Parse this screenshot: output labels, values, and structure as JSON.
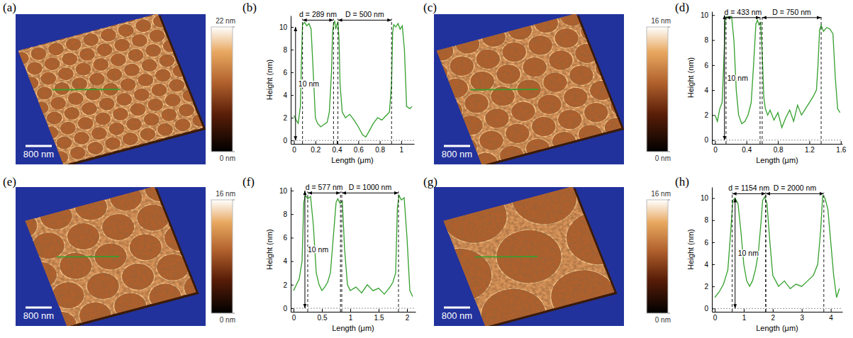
{
  "chart_data": [
    {
      "type": "image",
      "panel": "(a)",
      "scale_bar": {
        "value": 800,
        "label": "800 nm"
      },
      "colorbar": {
        "range": [
          0,
          22
        ],
        "ticks": [
          {
            "value": 0,
            "label": "0 nm"
          },
          {
            "value": 22,
            "label": "22 nm"
          }
        ]
      }
    },
    {
      "type": "line",
      "panel": "(b)",
      "xlabel": "Length (μm)",
      "ylabel": "Height (nm)",
      "color": "#33a02c",
      "x": [
        0,
        0.02,
        0.04,
        0.06,
        0.07,
        0.08,
        0.1,
        0.12,
        0.14,
        0.16,
        0.18,
        0.2,
        0.22,
        0.25,
        0.28,
        0.31,
        0.33,
        0.35,
        0.36,
        0.37,
        0.38,
        0.39,
        0.4,
        0.41,
        0.42,
        0.43,
        0.45,
        0.48,
        0.52,
        0.56,
        0.6,
        0.64,
        0.67,
        0.7,
        0.74,
        0.78,
        0.82,
        0.86,
        0.89,
        0.91,
        0.92,
        0.93,
        0.95,
        0.97,
        0.99,
        1.01,
        1.03,
        1.05,
        1.08,
        1.1
      ],
      "values": [
        2.2,
        1.8,
        1.5,
        3,
        7,
        10.2,
        10.4,
        10.1,
        10.3,
        9.8,
        6,
        2,
        1.5,
        1.2,
        1.4,
        1.6,
        2.5,
        6,
        9.5,
        10.3,
        10.5,
        9.8,
        10.2,
        10.4,
        9,
        5,
        2.5,
        2,
        2.3,
        1.8,
        1.2,
        0.5,
        0.3,
        0.8,
        1.5,
        2,
        1.8,
        2.2,
        2.5,
        5,
        9.5,
        10.2,
        10,
        10.3,
        9.8,
        10.1,
        8,
        3,
        2.8,
        3
      ],
      "xlim": [
        -0.03,
        1.12
      ],
      "ylim": [
        -0.3,
        11
      ],
      "xticks": [
        0,
        0.2,
        0.4,
        0.6,
        0.8,
        1
      ],
      "yticks": [
        0,
        2,
        4,
        6,
        8,
        10
      ],
      "annotations": [
        {
          "text": "d = 289 nm",
          "x": [
            0.08,
            0.369
          ],
          "y": 10.6
        },
        {
          "text": "D = 500 nm",
          "x": [
            0.41,
            0.91
          ],
          "y": 10.6
        },
        {
          "text": "10 nm",
          "x": 0.015,
          "y": [
            0,
            10
          ]
        }
      ]
    },
    {
      "type": "image",
      "panel": "(c)",
      "scale_bar": {
        "value": 800,
        "label": "800 nm"
      },
      "colorbar": {
        "range": [
          0,
          16
        ],
        "ticks": [
          {
            "value": 0,
            "label": "0 nm"
          },
          {
            "value": 16,
            "label": "16 nm"
          }
        ]
      }
    },
    {
      "type": "line",
      "panel": "(d)",
      "xlabel": "Length (μm)",
      "ylabel": "Height (nm)",
      "color": "#33a02c",
      "x": [
        0,
        0.03,
        0.06,
        0.09,
        0.11,
        0.13,
        0.15,
        0.18,
        0.21,
        0.24,
        0.27,
        0.3,
        0.34,
        0.38,
        0.42,
        0.46,
        0.49,
        0.52,
        0.54,
        0.56,
        0.58,
        0.6,
        0.62,
        0.64,
        0.67,
        0.7,
        0.75,
        0.8,
        0.85,
        0.9,
        0.95,
        1.0,
        1.05,
        1.1,
        1.15,
        1.2,
        1.25,
        1.29,
        1.31,
        1.33,
        1.35,
        1.38,
        1.42,
        1.46,
        1.5,
        1.53,
        1.56,
        1.59
      ],
      "values": [
        2,
        1.5,
        2.5,
        3,
        6,
        9.5,
        10,
        9.8,
        9.9,
        8,
        4,
        2,
        1.3,
        1.5,
        2,
        3,
        6,
        9.3,
        9.6,
        9.2,
        9.4,
        7,
        3.5,
        2.5,
        2,
        2.4,
        1.6,
        2.2,
        1,
        1.8,
        2.4,
        1.5,
        2.8,
        2,
        2.5,
        3,
        3.5,
        4,
        6,
        8.8,
        9.2,
        8.7,
        9,
        8.9,
        8.5,
        5,
        2.5,
        2.2
      ],
      "xlim": [
        -0.04,
        1.62
      ],
      "ylim": [
        -0.3,
        10.3
      ],
      "xticks": [
        0,
        0.4,
        0.8,
        1.2,
        1.6
      ],
      "yticks": [
        0,
        2,
        4,
        6,
        8,
        10
      ],
      "annotations": [
        {
          "text": "d = 433 nm",
          "x": [
            0.14,
            0.573
          ],
          "y": 9.8
        },
        {
          "text": "D = 750 nm",
          "x": [
            0.6,
            1.35
          ],
          "y": 9.8
        },
        {
          "text": "10 nm",
          "x": 0.12,
          "y": [
            0,
            10
          ]
        }
      ]
    },
    {
      "type": "image",
      "panel": "(e)",
      "scale_bar": {
        "value": 800,
        "label": "800 nm"
      },
      "colorbar": {
        "range": [
          0,
          16
        ],
        "ticks": [
          {
            "value": 0,
            "label": "0 nm"
          },
          {
            "value": 16,
            "label": "16 nm"
          }
        ]
      }
    },
    {
      "type": "line",
      "panel": "(f)",
      "xlabel": "Length (μm)",
      "ylabel": "Height (nm)",
      "color": "#33a02c",
      "x": [
        0,
        0.05,
        0.1,
        0.15,
        0.18,
        0.21,
        0.25,
        0.3,
        0.35,
        0.4,
        0.45,
        0.5,
        0.55,
        0.6,
        0.65,
        0.7,
        0.75,
        0.78,
        0.82,
        0.86,
        0.9,
        0.95,
        1.0,
        1.1,
        1.2,
        1.3,
        1.4,
        1.5,
        1.6,
        1.7,
        1.75,
        1.8,
        1.83,
        1.86,
        1.9,
        1.95,
        2.0,
        2.05,
        2.1
      ],
      "values": [
        1.5,
        2,
        2.5,
        4,
        9,
        9.6,
        9.3,
        9.5,
        7,
        3,
        2,
        1.5,
        1.8,
        2.2,
        3,
        6,
        9,
        9.3,
        8.9,
        9.1,
        5,
        2,
        1.5,
        1.8,
        1.3,
        2,
        1.5,
        1.7,
        1.2,
        1.8,
        2.2,
        3,
        8.5,
        9.6,
        9.2,
        9.4,
        6,
        1.5,
        1
      ],
      "xlim": [
        -0.05,
        2.15
      ],
      "ylim": [
        -0.3,
        10.3
      ],
      "xticks": [
        0,
        0.5,
        1,
        1.5,
        2
      ],
      "yticks": [
        0,
        2,
        4,
        6,
        8,
        10
      ],
      "annotations": [
        {
          "text": "d = 577 nm",
          "x": [
            0.25,
            0.827
          ],
          "y": 9.8
        },
        {
          "text": "D = 1000 nm",
          "x": [
            0.85,
            1.85
          ],
          "y": 9.8
        },
        {
          "text": "10 nm",
          "x": 0.2,
          "y": [
            0,
            10
          ]
        }
      ]
    },
    {
      "type": "image",
      "panel": "(g)",
      "scale_bar": {
        "value": 800,
        "label": "800 nm"
      },
      "colorbar": {
        "range": [
          0,
          16
        ],
        "ticks": [
          {
            "value": 0,
            "label": "0 nm"
          },
          {
            "value": 16,
            "label": "16 nm"
          }
        ]
      }
    },
    {
      "type": "line",
      "panel": "(h)",
      "xlabel": "Length (μm)",
      "ylabel": "Height (nm)",
      "color": "#33a02c",
      "x": [
        0,
        0.15,
        0.3,
        0.45,
        0.55,
        0.62,
        0.7,
        0.8,
        0.9,
        1.0,
        1.1,
        1.2,
        1.3,
        1.4,
        1.5,
        1.6,
        1.65,
        1.72,
        1.8,
        1.9,
        2.0,
        2.2,
        2.4,
        2.6,
        2.8,
        3.0,
        3.2,
        3.4,
        3.55,
        3.65,
        3.72,
        3.8,
        3.9,
        4.0,
        4.1,
        4.2,
        4.3
      ],
      "values": [
        1,
        1.5,
        2.2,
        3.5,
        7,
        9.8,
        10,
        9.5,
        7,
        4,
        2.5,
        2,
        2.5,
        3.5,
        5,
        8,
        9.8,
        10.1,
        9.5,
        6,
        3,
        2,
        2.5,
        1.8,
        2.2,
        2,
        2.5,
        3,
        4,
        7,
        10.2,
        10,
        9,
        6,
        3,
        1,
        1.8
      ],
      "xlim": [
        -0.1,
        4.4
      ],
      "ylim": [
        -0.3,
        11
      ],
      "xticks": [
        0,
        1,
        2,
        3,
        4
      ],
      "yticks": [
        0,
        2,
        4,
        6,
        8,
        10
      ],
      "annotations": [
        {
          "text": "d = 1154 nm",
          "x": [
            0.6,
            1.754
          ],
          "y": 10.4
        },
        {
          "text": "D = 2000 nm",
          "x": [
            1.76,
            3.76
          ],
          "y": 10.4
        },
        {
          "text": "10 nm",
          "x": 0.7,
          "y": [
            0,
            10
          ]
        }
      ]
    }
  ]
}
